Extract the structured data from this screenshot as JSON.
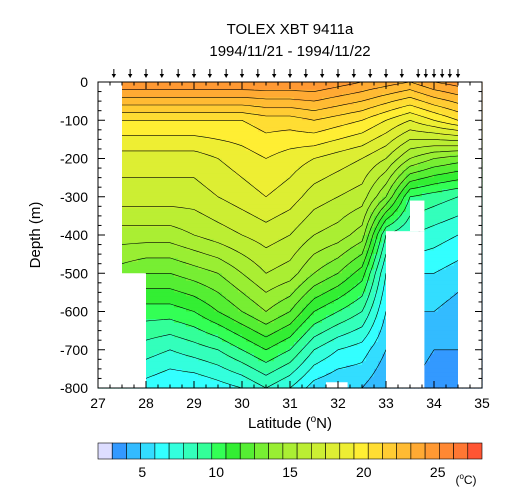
{
  "chart_data": {
    "type": "heatmap",
    "title": "TOLEX XBT 9411a",
    "subtitle": "1994/11/21 - 1994/11/22",
    "xlabel": "Latitude (°N)",
    "ylabel": "Depth (m)",
    "xlim": [
      27,
      35
    ],
    "ylim": [
      -800,
      0
    ],
    "x_ticks": [
      27,
      28,
      29,
      30,
      31,
      32,
      33,
      34,
      35
    ],
    "y_ticks": [
      0,
      -100,
      -200,
      -300,
      -400,
      -500,
      -600,
      -700,
      -800
    ],
    "x_tick_labels": [
      "27",
      "28",
      "29",
      "30",
      "31",
      "32",
      "33",
      "34",
      "35"
    ],
    "y_tick_labels": [
      "0",
      "-100",
      "-200",
      "-300",
      "-400",
      "-500",
      "-600",
      "-700",
      "-800"
    ],
    "colorbar": {
      "min": 2,
      "max": 28,
      "step": 1,
      "tick_values": [
        5,
        10,
        15,
        20,
        25
      ],
      "tick_labels": [
        "5",
        "10",
        "15",
        "20",
        "25"
      ],
      "unit": "(°C)",
      "colors": [
        "#ddddff",
        "#3399ff",
        "#33bbff",
        "#33ddff",
        "#33ffff",
        "#33ffdd",
        "#33ffbb",
        "#33ff99",
        "#33ff55",
        "#33ee33",
        "#55ee33",
        "#77ee33",
        "#99ee33",
        "#aaee33",
        "#bbee33",
        "#ccee33",
        "#ddee33",
        "#eeee33",
        "#ffee33",
        "#ffdd33",
        "#ffcc33",
        "#ffbb33",
        "#ffaa33",
        "#ff9933",
        "#ff8833",
        "#ff7733",
        "#ff5533"
      ]
    },
    "station_latitudes": [
      27.33,
      27.67,
      28.0,
      28.33,
      28.67,
      29.0,
      29.33,
      29.67,
      30.0,
      30.33,
      30.67,
      31.0,
      31.33,
      31.67,
      32.0,
      32.33,
      32.67,
      33.0,
      33.33,
      33.67,
      33.83,
      34.0,
      34.17,
      34.33,
      34.5
    ],
    "temperature_profiles": {
      "depths": [
        0,
        100,
        200,
        300,
        400,
        500,
        600,
        700,
        800
      ],
      "latitudes": [
        27.5,
        28.0,
        28.5,
        29.0,
        29.5,
        30.0,
        30.5,
        31.0,
        31.5,
        32.0,
        32.5,
        33.0,
        33.5,
        34.0,
        34.5
      ],
      "temperatures": [
        [
          26.0,
          26.0,
          26.0,
          26.0,
          26.0,
          26.0,
          26.0,
          26.0,
          26.0,
          25.5,
          25.0,
          24.5,
          24.0,
          25.0,
          25.5
        ],
        [
          21.0,
          21.0,
          21.0,
          21.0,
          21.0,
          21.0,
          21.5,
          21.5,
          22.0,
          21.5,
          21.0,
          20.0,
          19.0,
          20.0,
          21.0
        ],
        [
          18.5,
          18.5,
          18.5,
          18.5,
          19.0,
          19.5,
          20.0,
          19.5,
          19.0,
          18.5,
          18.0,
          17.0,
          15.0,
          14.0,
          13.5
        ],
        [
          17.5,
          17.5,
          17.5,
          17.5,
          18.0,
          18.5,
          19.0,
          18.5,
          17.5,
          17.0,
          16.5,
          14.0,
          10.0,
          9.5,
          9.0
        ],
        [
          15.5,
          15.5,
          15.5,
          16.0,
          16.5,
          17.0,
          17.5,
          17.0,
          16.0,
          15.5,
          14.5,
          9.0,
          8.0,
          7.5,
          7.0
        ],
        [
          13.5,
          13.0,
          13.0,
          13.5,
          14.0,
          15.0,
          16.0,
          15.5,
          14.0,
          13.0,
          11.5,
          7.0,
          6.0,
          6.0,
          5.5
        ],
        [
          11.0,
          10.5,
          10.5,
          11.0,
          12.0,
          13.0,
          14.0,
          13.0,
          11.0,
          10.0,
          9.0,
          6.0,
          5.0,
          5.0,
          4.5
        ],
        [
          9.0,
          8.5,
          8.0,
          8.5,
          9.0,
          10.0,
          11.0,
          10.0,
          8.0,
          7.0,
          6.5,
          5.0,
          4.5,
          4.0,
          4.0
        ],
        [
          7.0,
          6.5,
          6.0,
          6.0,
          6.5,
          7.0,
          8.0,
          7.0,
          5.5,
          5.0,
          5.0,
          4.0,
          4.0,
          3.5,
          3.5
        ]
      ]
    },
    "no_data_regions": [
      {
        "lat": [
          27.0,
          27.5
        ],
        "depth": [
          0,
          -800
        ]
      },
      {
        "lat": [
          27.5,
          28.0
        ],
        "depth": [
          -500,
          -800
        ]
      },
      {
        "lat": [
          34.5,
          35.0
        ],
        "depth": [
          0,
          -800
        ]
      },
      {
        "lat": [
          33.0,
          33.8
        ],
        "depth": [
          -390,
          -800
        ]
      },
      {
        "lat": [
          33.5,
          33.8
        ],
        "depth": [
          -310,
          -390
        ]
      },
      {
        "lat": [
          31.75,
          32.2
        ],
        "depth": [
          -785,
          -800
        ]
      }
    ],
    "contour_interval": 1,
    "grid": false,
    "legend": "bottom"
  }
}
